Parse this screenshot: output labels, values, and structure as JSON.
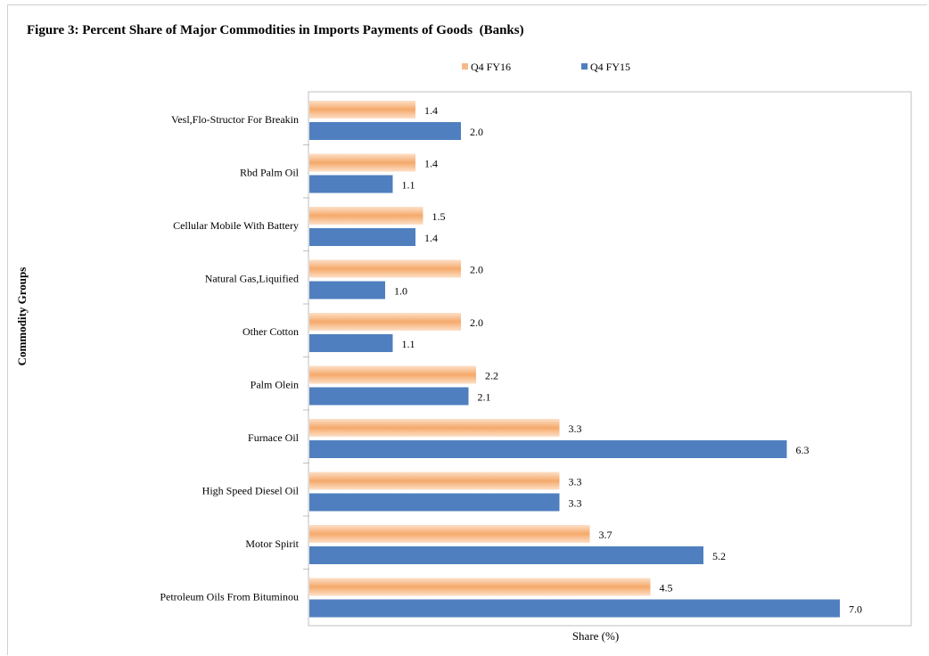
{
  "chart_data": {
    "type": "bar",
    "orientation": "horizontal",
    "title": "Figure 3: Percent Share of Major Commodities in Imports Payments of Goods  (Banks)",
    "xlabel": "Share (%)",
    "ylabel": "Commodity Groups",
    "categories": [
      "Vesl,Flo-Structor For Breakin",
      "Rbd Palm Oil",
      "Cellular Mobile With Battery",
      "Natural Gas,Liquified",
      "Other Cotton",
      "Palm Olein",
      "Furnace Oil",
      "High Speed Diesel Oil",
      "Motor Spirit",
      "Petroleum Oils From Bituminou"
    ],
    "series": [
      {
        "name": "Q4 FY16",
        "color": "#f5a96a",
        "values": [
          1.4,
          1.4,
          1.5,
          2.0,
          2.0,
          2.2,
          3.3,
          3.3,
          3.7,
          4.5
        ]
      },
      {
        "name": "Q4 FY15",
        "color": "#4f7fbf",
        "values": [
          2.0,
          1.1,
          1.4,
          1.0,
          1.1,
          2.1,
          6.3,
          3.3,
          5.2,
          7.0
        ]
      }
    ],
    "legend_position": "top",
    "grid": false,
    "value_labels": true
  }
}
